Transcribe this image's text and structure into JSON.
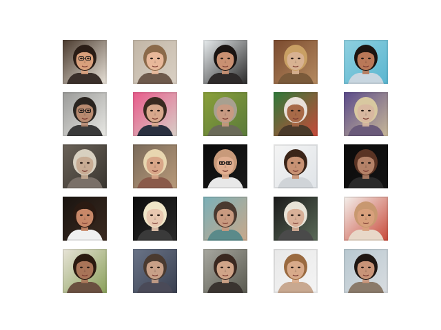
{
  "figure": {
    "background": "#ffffff",
    "rows": 5,
    "cols": 5,
    "tiles": [
      {
        "label": "generated-face",
        "bg": "#4a3a2e",
        "bg2": "#e8e2d8",
        "skin": "#d9a07c",
        "hair": "#2a1d16",
        "shirt": "#3a2f2a",
        "glasses": true
      },
      {
        "label": "generated-face",
        "bg": "#c2b6a6",
        "bg2": "#d9d0c4",
        "skin": "#e8b89a",
        "hair": "#8b6a4a",
        "shirt": "#6e5a4c",
        "glasses": false
      },
      {
        "label": "generated-face",
        "bg": "#e8ecee",
        "bg2": "#2a2a2a",
        "skin": "#c99072",
        "hair": "#1a1412",
        "shirt": "#2e2a2a",
        "glasses": false
      },
      {
        "label": "generated-face",
        "bg": "#7a4a2e",
        "bg2": "#b58a60",
        "skin": "#d8b292",
        "hair": "#c9a064",
        "shirt": "#7a5a3a",
        "glasses": false
      },
      {
        "label": "generated-face",
        "bg": "#8fd0e0",
        "bg2": "#5ab6d0",
        "skin": "#b97858",
        "hair": "#1c1410",
        "shirt": "#c8d6e0",
        "glasses": false
      },
      {
        "label": "generated-face",
        "bg": "#9a9a98",
        "bg2": "#e8e8e4",
        "skin": "#b88a70",
        "hair": "#2a2420",
        "shirt": "#3a3a3a",
        "glasses": true
      },
      {
        "label": "generated-face",
        "bg": "#e85a8a",
        "bg2": "#d8d0c8",
        "skin": "#d8a88c",
        "hair": "#3a2a20",
        "shirt": "#2a3040",
        "glasses": false
      },
      {
        "label": "generated-face",
        "bg": "#8aa03a",
        "bg2": "#5a7a3a",
        "skin": "#c89a82",
        "hair": "#a8a090",
        "shirt": "#6a6a58",
        "glasses": false
      },
      {
        "label": "generated-face",
        "bg": "#2e7a3a",
        "bg2": "#c84a3a",
        "skin": "#a86a48",
        "hair": "#e8e0d8",
        "shirt": "#4a3a2a",
        "glasses": false
      },
      {
        "label": "generated-face",
        "bg": "#5a4a8a",
        "bg2": "#c8b898",
        "skin": "#d8b8a0",
        "hair": "#d8c8a0",
        "shirt": "#6a5a7a",
        "glasses": false
      },
      {
        "label": "generated-face",
        "bg": "#6a6258",
        "bg2": "#3a3630",
        "skin": "#c8ac94",
        "hair": "#d8d0c0",
        "shirt": "#7a7068",
        "glasses": false
      },
      {
        "label": "generated-face",
        "bg": "#7a6a5a",
        "bg2": "#b89a7a",
        "skin": "#d8a688",
        "hair": "#e8d6b0",
        "shirt": "#8a5a4a",
        "glasses": false
      },
      {
        "label": "generated-face",
        "bg": "#0a0a0a",
        "bg2": "#1a1a1a",
        "skin": "#e0ae90",
        "hair": "#c89a7a",
        "shirt": "#e8e8e8",
        "glasses": true
      },
      {
        "label": "generated-face",
        "bg": "#f4f4f4",
        "bg2": "#e0e4e8",
        "skin": "#c89274",
        "hair": "#3a2418",
        "shirt": "#d0d4d8",
        "glasses": false
      },
      {
        "label": "generated-face",
        "bg": "#0a0a0a",
        "bg2": "#141414",
        "skin": "#b48268",
        "hair": "#5a3424",
        "shirt": "#2a2a2a",
        "glasses": false
      },
      {
        "label": "generated-face",
        "bg": "#1a1410",
        "bg2": "#3a2a20",
        "skin": "#c88868",
        "hair": "#2a1a12",
        "shirt": "#f0f0f0",
        "glasses": false
      },
      {
        "label": "generated-face",
        "bg": "#0c0c0c",
        "bg2": "#2a2a2a",
        "skin": "#e8c8b0",
        "hair": "#f0e6c8",
        "shirt": "#3a3a3a",
        "glasses": false
      },
      {
        "label": "generated-face",
        "bg": "#7ab0b8",
        "bg2": "#c8a88a",
        "skin": "#c89a80",
        "hair": "#4a3a30",
        "shirt": "#5a8a8a",
        "glasses": false
      },
      {
        "label": "generated-face",
        "bg": "#1a1a1a",
        "bg2": "#5a6a58",
        "skin": "#d8b098",
        "hair": "#e8e4d8",
        "shirt": "#4a4a4a",
        "glasses": false
      },
      {
        "label": "generated-face",
        "bg": "#f4f0ec",
        "bg2": "#c84a3a",
        "skin": "#d8a07c",
        "hair": "#c89870",
        "shirt": "#e8d8c8",
        "glasses": false
      },
      {
        "label": "generated-face",
        "bg": "#e8e4d8",
        "bg2": "#8aa05a",
        "skin": "#a87458",
        "hair": "#2a1a10",
        "shirt": "#6a5040",
        "glasses": false
      },
      {
        "label": "generated-face",
        "bg": "#6a7488",
        "bg2": "#3a4050",
        "skin": "#c8a088",
        "hair": "#4a3a30",
        "shirt": "#4a4a58",
        "glasses": false
      },
      {
        "label": "generated-face",
        "bg": "#a8a8a0",
        "bg2": "#5a5a50",
        "skin": "#d0a488",
        "hair": "#3a2820",
        "shirt": "#3a3430",
        "glasses": false
      },
      {
        "label": "generated-face",
        "bg": "#e8e8e8",
        "bg2": "#f4f4f4",
        "skin": "#d8aa8a",
        "hair": "#9a6a40",
        "shirt": "#c8a890",
        "glasses": false
      },
      {
        "label": "generated-face",
        "bg": "#b8c8d0",
        "bg2": "#d8dce0",
        "skin": "#c89478",
        "hair": "#1e1612",
        "shirt": "#8a7a6a",
        "glasses": false
      }
    ]
  }
}
